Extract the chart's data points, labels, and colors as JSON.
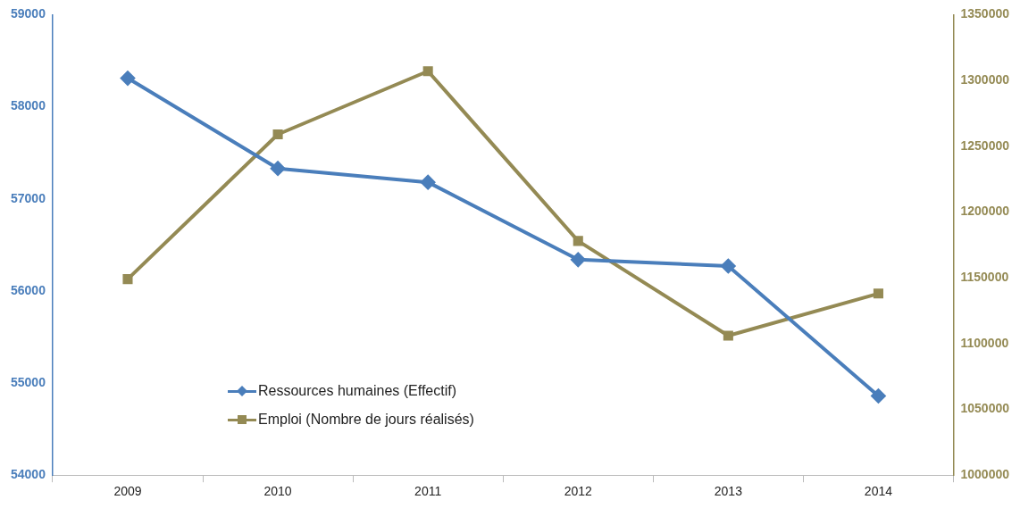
{
  "chart_data": {
    "type": "line",
    "categories": [
      "2009",
      "2010",
      "2011",
      "2012",
      "2013",
      "2014"
    ],
    "series": [
      {
        "name": "Ressources humaines (Effectif)",
        "color": "#4a7ebb",
        "marker": "diamond",
        "values": [
          58310,
          57330,
          57180,
          56340,
          56270,
          54860
        ]
      },
      {
        "name": "Emploi (Nombre de jours réalisés)",
        "color": "#948a54",
        "marker": "square",
        "axis": "y2",
        "values": [
          1149000,
          1259000,
          1307000,
          1178000,
          1106000,
          1138000
        ]
      }
    ],
    "ylim": [
      54000,
      59000
    ],
    "yticks": [
      54000,
      55000,
      56000,
      57000,
      58000,
      59000
    ],
    "y2lim": [
      1000000,
      1350000
    ],
    "y2ticks": [
      1000000,
      1050000,
      1100000,
      1150000,
      1200000,
      1250000,
      1300000,
      1350000
    ],
    "grid": false,
    "legend": "bottom left",
    "line_style": "solid"
  }
}
